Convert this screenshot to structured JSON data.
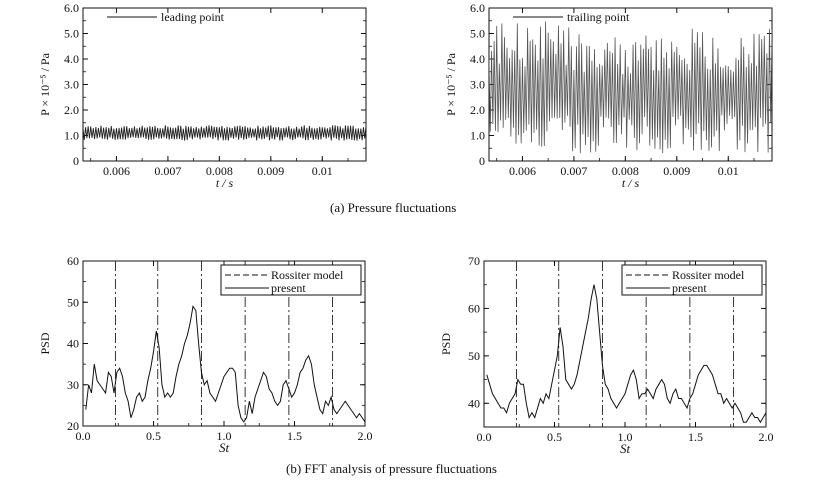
{
  "captions": {
    "a": "(a) Pressure fluctuations",
    "b": "(b) FFT analysis of pressure fluctuations"
  },
  "chart_data": [
    {
      "id": "ts-leading",
      "type": "line",
      "title": "",
      "xlabel": "t / s",
      "ylabel": "P × 10⁻⁵ / Pa",
      "xlim": [
        0.00535,
        0.01085
      ],
      "ylim": [
        0,
        6.0
      ],
      "xticks": [
        0.006,
        0.007,
        0.008,
        0.009,
        0.01
      ],
      "xtick_labels": [
        "0.006",
        "0.007",
        "0.008",
        "0.009",
        "0.01"
      ],
      "yticks": [
        0,
        1.0,
        2.0,
        3.0,
        4.0,
        5.0,
        6.0
      ],
      "ytick_labels": [
        "0",
        "1.0",
        "2.0",
        "3.0",
        "4.0",
        "5.0",
        "6.0"
      ],
      "legend": "top-left",
      "series": [
        {
          "name": "leading point",
          "signal": {
            "mean": 1.1,
            "amplitude": 0.3,
            "approx_period_s": 5e-05
          }
        }
      ]
    },
    {
      "id": "ts-trailing",
      "type": "line",
      "title": "",
      "xlabel": "t / s",
      "ylabel": "P × 10⁻⁵ / Pa",
      "xlim": [
        0.00535,
        0.01085
      ],
      "ylim": [
        0,
        6.0
      ],
      "xticks": [
        0.006,
        0.007,
        0.008,
        0.009,
        0.01
      ],
      "xtick_labels": [
        "0.006",
        "0.007",
        "0.008",
        "0.009",
        "0.01"
      ],
      "yticks": [
        0,
        1.0,
        2.0,
        3.0,
        4.0,
        5.0,
        6.0
      ],
      "ytick_labels": [
        "0",
        "1.0",
        "2.0",
        "3.0",
        "4.0",
        "5.0",
        "6.0"
      ],
      "legend": "top-left",
      "series": [
        {
          "name": "trailing point",
          "signal": {
            "mean": 2.6,
            "min": 0.3,
            "max": 5.7,
            "approx_period_s": 5e-05
          }
        }
      ]
    },
    {
      "id": "psd-leading",
      "type": "line",
      "title": "",
      "xlabel": "St",
      "ylabel": "PSD",
      "xlim": [
        0,
        2.0
      ],
      "ylim": [
        20,
        60
      ],
      "xticks": [
        0,
        0.5,
        1.0,
        1.5,
        2.0
      ],
      "xtick_labels": [
        "0.0",
        "0.5",
        "1.0",
        "1.5",
        "2.0"
      ],
      "yticks": [
        20,
        30,
        40,
        50,
        60
      ],
      "ytick_labels": [
        "20",
        "30",
        "40",
        "50",
        "60"
      ],
      "legend": "top-right",
      "rossiter_modes": [
        0.23,
        0.53,
        0.84,
        1.15,
        1.46,
        1.77
      ],
      "series": [
        {
          "name": "Rossiter model",
          "style": "dash-dot"
        },
        {
          "name": "present",
          "x": [
            0.02,
            0.04,
            0.06,
            0.08,
            0.1,
            0.12,
            0.14,
            0.16,
            0.18,
            0.2,
            0.22,
            0.24,
            0.26,
            0.28,
            0.3,
            0.32,
            0.34,
            0.36,
            0.38,
            0.4,
            0.42,
            0.44,
            0.46,
            0.48,
            0.5,
            0.52,
            0.54,
            0.56,
            0.58,
            0.6,
            0.62,
            0.64,
            0.66,
            0.68,
            0.7,
            0.72,
            0.74,
            0.76,
            0.78,
            0.8,
            0.82,
            0.84,
            0.86,
            0.88,
            0.9,
            0.92,
            0.94,
            0.96,
            0.98,
            1.0,
            1.02,
            1.04,
            1.06,
            1.08,
            1.1,
            1.12,
            1.14,
            1.16,
            1.18,
            1.2,
            1.22,
            1.24,
            1.26,
            1.28,
            1.3,
            1.32,
            1.34,
            1.36,
            1.38,
            1.4,
            1.42,
            1.44,
            1.46,
            1.48,
            1.5,
            1.52,
            1.54,
            1.56,
            1.58,
            1.6,
            1.62,
            1.64,
            1.66,
            1.68,
            1.7,
            1.72,
            1.74,
            1.76,
            1.78,
            1.8,
            1.82,
            1.84,
            1.86,
            1.88,
            1.9,
            1.92,
            1.94,
            1.96,
            1.98,
            2.0
          ],
          "y": [
            24,
            30,
            28,
            35,
            31,
            30,
            29,
            28,
            33,
            32,
            28,
            33,
            34,
            32,
            28,
            26,
            22,
            24,
            27,
            28,
            26,
            27,
            31,
            34,
            38,
            43,
            39,
            30,
            27,
            28,
            27,
            28,
            32,
            35,
            37,
            40,
            42,
            45,
            49,
            48,
            40,
            33,
            30,
            31,
            28,
            27,
            26,
            28,
            30,
            32,
            33,
            34,
            34,
            33,
            25,
            22,
            21,
            22,
            26,
            23,
            27,
            29,
            31,
            33,
            32,
            29,
            28,
            26,
            25,
            26,
            30,
            31,
            29,
            27,
            28,
            30,
            33,
            34,
            36,
            37,
            35,
            30,
            27,
            24,
            23,
            26,
            25,
            27,
            24,
            23,
            24,
            25,
            26,
            25,
            24,
            23,
            22,
            23,
            22,
            21
          ]
        }
      ]
    },
    {
      "id": "psd-trailing",
      "type": "line",
      "title": "",
      "xlabel": "St",
      "ylabel": "PSD",
      "xlim": [
        0,
        2.0
      ],
      "ylim": [
        35,
        70
      ],
      "xticks": [
        0,
        0.5,
        1.0,
        1.5,
        2.0
      ],
      "xtick_labels": [
        "0.0",
        "0.5",
        "1.0",
        "1.5",
        "2.0"
      ],
      "yticks": [
        40,
        50,
        60,
        70
      ],
      "ytick_labels": [
        "40",
        "50",
        "60",
        "70"
      ],
      "legend": "top-right",
      "rossiter_modes": [
        0.23,
        0.53,
        0.84,
        1.15,
        1.46,
        1.77
      ],
      "series": [
        {
          "name": "Rossiter model",
          "style": "dash-dot"
        },
        {
          "name": "present",
          "x": [
            0.02,
            0.04,
            0.06,
            0.08,
            0.1,
            0.12,
            0.14,
            0.16,
            0.18,
            0.2,
            0.22,
            0.24,
            0.26,
            0.28,
            0.3,
            0.32,
            0.34,
            0.36,
            0.38,
            0.4,
            0.42,
            0.44,
            0.46,
            0.48,
            0.5,
            0.52,
            0.54,
            0.56,
            0.58,
            0.6,
            0.62,
            0.64,
            0.66,
            0.68,
            0.7,
            0.72,
            0.74,
            0.76,
            0.78,
            0.8,
            0.82,
            0.84,
            0.86,
            0.88,
            0.9,
            0.92,
            0.94,
            0.96,
            0.98,
            1.0,
            1.02,
            1.04,
            1.06,
            1.08,
            1.1,
            1.12,
            1.14,
            1.16,
            1.18,
            1.2,
            1.22,
            1.24,
            1.26,
            1.28,
            1.3,
            1.32,
            1.34,
            1.36,
            1.38,
            1.4,
            1.42,
            1.44,
            1.46,
            1.48,
            1.5,
            1.52,
            1.54,
            1.56,
            1.58,
            1.6,
            1.62,
            1.64,
            1.66,
            1.68,
            1.7,
            1.72,
            1.74,
            1.76,
            1.78,
            1.8,
            1.82,
            1.84,
            1.86,
            1.88,
            1.9,
            1.92,
            1.94,
            1.96,
            1.98,
            2.0
          ],
          "y": [
            46,
            44,
            42,
            41,
            40,
            39,
            39,
            38,
            40,
            41,
            42,
            45,
            44,
            44,
            40,
            37,
            38,
            37,
            39,
            41,
            40,
            42,
            41,
            44,
            47,
            50,
            56,
            52,
            45,
            44,
            43,
            44,
            46,
            49,
            52,
            55,
            58,
            62,
            65,
            62,
            55,
            48,
            44,
            43,
            41,
            40,
            39,
            40,
            41,
            42,
            44,
            46,
            47,
            45,
            41,
            42,
            42,
            43,
            42,
            41,
            43,
            44,
            45,
            44,
            41,
            40,
            42,
            43,
            41,
            41,
            40,
            39,
            41,
            42,
            44,
            46,
            47,
            48,
            48,
            47,
            46,
            44,
            42,
            42,
            40,
            41,
            40,
            39,
            40,
            39,
            38,
            36,
            36,
            37,
            38,
            37,
            37,
            36,
            37,
            38
          ]
        }
      ]
    }
  ]
}
